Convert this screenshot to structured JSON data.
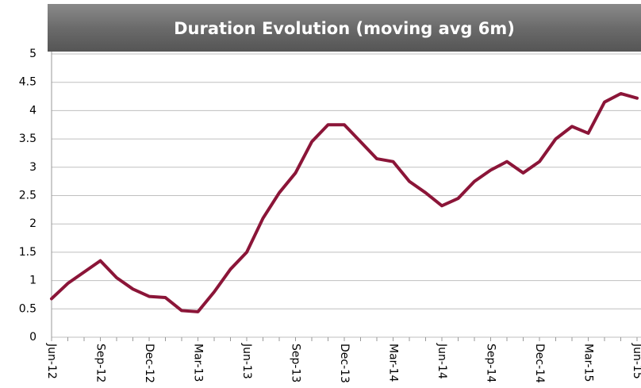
{
  "chart_data": {
    "type": "line",
    "title": "Duration Evolution (moving avg 6m)",
    "categories": [
      "Jun-12",
      null,
      null,
      "Sep-12",
      null,
      null,
      "Dec-12",
      null,
      null,
      "Mar-13",
      null,
      null,
      "Jun-13",
      null,
      null,
      "Sep-13",
      null,
      null,
      "Dec-13",
      null,
      null,
      "Mar-14",
      null,
      null,
      "Jun-14",
      null,
      null,
      "Sep-14",
      null,
      null,
      "Dec-14",
      null,
      null,
      "Mar-15",
      null,
      null,
      "Jun-15"
    ],
    "series": [
      {
        "name": "Duration",
        "color": "#8b1538",
        "values": [
          0.68,
          0.95,
          1.15,
          1.35,
          1.05,
          0.85,
          0.72,
          0.7,
          0.47,
          0.45,
          0.8,
          1.2,
          1.5,
          2.1,
          2.55,
          2.9,
          3.45,
          3.75,
          3.75,
          3.45,
          3.15,
          3.1,
          2.75,
          2.55,
          2.32,
          2.45,
          2.75,
          2.95,
          3.1,
          2.9,
          3.1,
          3.5,
          3.72,
          3.6,
          4.15,
          4.3,
          4.22
        ]
      }
    ],
    "ylim": [
      0,
      5
    ],
    "yticks": [
      0,
      0.5,
      1,
      1.5,
      2,
      2.5,
      3,
      3.5,
      4,
      4.5,
      5
    ],
    "grid": true
  }
}
